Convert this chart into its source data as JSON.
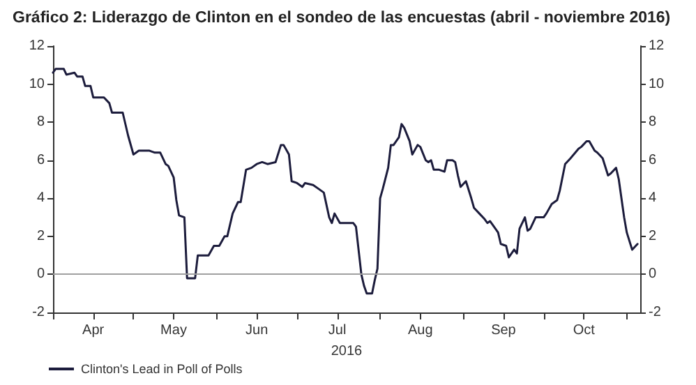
{
  "chart_data": {
    "type": "line",
    "title": "Gráfico 2: Liderazgo de Clinton en el sondeo de las encuestas (abril - noviembre 2016)",
    "xlabel": "2016",
    "x": [
      "2016-04-01",
      "2016-04-02",
      "2016-04-05",
      "2016-04-06",
      "2016-04-09",
      "2016-04-10",
      "2016-04-12",
      "2016-04-13",
      "2016-04-15",
      "2016-04-16",
      "2016-04-20",
      "2016-04-22",
      "2016-04-23",
      "2016-04-27",
      "2016-04-29",
      "2016-05-01",
      "2016-05-03",
      "2016-05-07",
      "2016-05-09",
      "2016-05-11",
      "2016-05-13",
      "2016-05-14",
      "2016-05-16",
      "2016-05-17",
      "2016-05-18",
      "2016-05-20",
      "2016-05-21",
      "2016-05-24",
      "2016-05-25",
      "2016-05-29",
      "2016-05-31",
      "2016-06-02",
      "2016-06-04",
      "2016-06-05",
      "2016-06-07",
      "2016-06-09",
      "2016-06-10",
      "2016-06-12",
      "2016-06-14",
      "2016-06-16",
      "2016-06-18",
      "2016-06-20",
      "2016-06-23",
      "2016-06-25",
      "2016-06-26",
      "2016-06-28",
      "2016-06-29",
      "2016-07-01",
      "2016-07-03",
      "2016-07-04",
      "2016-07-07",
      "2016-07-09",
      "2016-07-11",
      "2016-07-13",
      "2016-07-14",
      "2016-07-15",
      "2016-07-17",
      "2016-07-19",
      "2016-07-22",
      "2016-07-23",
      "2016-07-25",
      "2016-07-26",
      "2016-07-27",
      "2016-07-29",
      "2016-07-30",
      "2016-07-31",
      "2016-08-01",
      "2016-08-02",
      "2016-08-04",
      "2016-08-05",
      "2016-08-06",
      "2016-08-08",
      "2016-08-09",
      "2016-08-10",
      "2016-08-12",
      "2016-08-13",
      "2016-08-15",
      "2016-08-16",
      "2016-08-18",
      "2016-08-19",
      "2016-08-20",
      "2016-08-21",
      "2016-08-23",
      "2016-08-25",
      "2016-08-26",
      "2016-08-28",
      "2016-08-29",
      "2016-08-30",
      "2016-08-31",
      "2016-09-02",
      "2016-09-04",
      "2016-09-05",
      "2016-09-07",
      "2016-09-09",
      "2016-09-10",
      "2016-09-11",
      "2016-09-13",
      "2016-09-14",
      "2016-09-15",
      "2016-09-17",
      "2016-09-18",
      "2016-09-20",
      "2016-09-21",
      "2016-09-22",
      "2016-09-24",
      "2016-09-25",
      "2016-09-26",
      "2016-09-28",
      "2016-10-01",
      "2016-10-02",
      "2016-10-04",
      "2016-10-06",
      "2016-10-07",
      "2016-10-09",
      "2016-10-11",
      "2016-10-14",
      "2016-10-15",
      "2016-10-17",
      "2016-10-18",
      "2016-10-20",
      "2016-10-21",
      "2016-10-23",
      "2016-10-25",
      "2016-10-26",
      "2016-10-28",
      "2016-10-29",
      "2016-10-31",
      "2016-11-01",
      "2016-11-03",
      "2016-11-05"
    ],
    "series": [
      {
        "name": "Clinton's Lead in Poll of Polls",
        "color": "#1c1c3c",
        "values": [
          10.6,
          10.8,
          10.8,
          10.5,
          10.6,
          10.4,
          10.4,
          9.9,
          9.9,
          9.3,
          9.3,
          9.0,
          8.5,
          8.5,
          7.3,
          6.3,
          6.5,
          6.5,
          6.4,
          6.4,
          5.8,
          5.7,
          5.1,
          3.9,
          3.1,
          3.0,
          -0.2,
          -0.2,
          1.0,
          1.0,
          1.5,
          1.5,
          2.0,
          2.0,
          3.2,
          3.8,
          3.8,
          5.5,
          5.6,
          5.8,
          5.9,
          5.8,
          5.9,
          6.8,
          6.8,
          6.3,
          4.9,
          4.8,
          4.6,
          4.8,
          4.7,
          4.5,
          4.3,
          3.0,
          2.7,
          3.2,
          2.7,
          2.7,
          2.7,
          2.5,
          0.0,
          -0.6,
          -1.0,
          -1.0,
          -0.3,
          0.3,
          4.0,
          4.5,
          5.6,
          6.8,
          6.8,
          7.2,
          7.9,
          7.7,
          7.0,
          6.3,
          6.8,
          6.7,
          6.0,
          5.9,
          6.0,
          5.5,
          5.5,
          5.4,
          6.0,
          6.0,
          5.9,
          5.2,
          4.6,
          4.9,
          4.0,
          3.5,
          3.2,
          2.9,
          2.7,
          2.8,
          2.4,
          2.2,
          1.6,
          1.5,
          0.9,
          1.3,
          1.1,
          2.4,
          3.0,
          2.3,
          2.4,
          3.0,
          3.0,
          3.2,
          3.7,
          3.9,
          4.4,
          5.8,
          6.1,
          6.6,
          6.7,
          7.0,
          7.0,
          6.5,
          6.4,
          6.1,
          5.2,
          5.3,
          5.6,
          5.0,
          3.0,
          2.2,
          1.3,
          1.6
        ]
      }
    ],
    "xlim": [
      "2016-04-01",
      "2016-11-06"
    ],
    "xticks": [
      {
        "value": "2016-04-01",
        "label": null
      },
      {
        "value": "2016-04-16",
        "label": "Apr"
      },
      {
        "value": "2016-05-01",
        "label": null
      },
      {
        "value": "2016-05-16",
        "label": "May"
      },
      {
        "value": "2016-06-01",
        "label": null
      },
      {
        "value": "2016-06-16",
        "label": "Jun"
      },
      {
        "value": "2016-07-01",
        "label": null
      },
      {
        "value": "2016-07-16",
        "label": "Jul"
      },
      {
        "value": "2016-08-01",
        "label": null
      },
      {
        "value": "2016-08-16",
        "label": "Aug"
      },
      {
        "value": "2016-09-01",
        "label": null
      },
      {
        "value": "2016-09-16",
        "label": "Sep"
      },
      {
        "value": "2016-10-01",
        "label": null
      },
      {
        "value": "2016-10-16",
        "label": "Oct"
      },
      {
        "value": "2016-11-01",
        "label": null
      }
    ],
    "ylim": [
      -2,
      12
    ],
    "yticks": [
      -2,
      0,
      2,
      4,
      6,
      8,
      10,
      12
    ],
    "y2lim": [
      -2,
      12
    ],
    "y2ticks": [
      -2,
      0,
      2,
      4,
      6,
      8,
      10,
      12
    ],
    "ref_lines": [
      {
        "axis": "y",
        "value": 0,
        "label": null,
        "color": "#a0a0a0"
      }
    ],
    "legend": "bottom left",
    "grid": false,
    "marker": "none",
    "line_style": "solid"
  }
}
